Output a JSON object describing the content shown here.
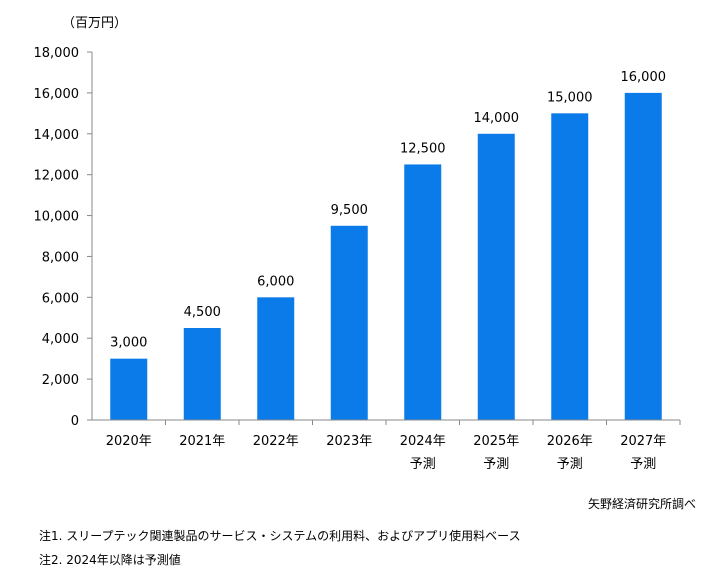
{
  "chart_data": {
    "type": "bar",
    "unit_label": "（百万円）",
    "categories": [
      "2020年",
      "2021年",
      "2022年",
      "2023年",
      "2024年",
      "2025年",
      "2026年",
      "2027年"
    ],
    "category_sublabels": [
      "",
      "",
      "",
      "",
      "予測",
      "予測",
      "予測",
      "予測"
    ],
    "values": [
      3000,
      4500,
      6000,
      9500,
      12500,
      14000,
      15000,
      16000
    ],
    "data_labels": [
      "3,000",
      "4,500",
      "6,000",
      "9,500",
      "12,500",
      "14,000",
      "15,000",
      "16,000"
    ],
    "y_ticks": [
      "0",
      "2,000",
      "4,000",
      "6,000",
      "8,000",
      "10,000",
      "12,000",
      "14,000",
      "16,000",
      "18,000"
    ],
    "ylim": [
      0,
      18000
    ],
    "grid": false,
    "bar_color": "#0a7be8"
  },
  "source": "矢野経済研究所調べ",
  "notes": [
    "注1. スリープテック関連製品のサービス・システムの利用料、およびアプリ使用料ベース",
    "注2. 2024年以降は予測値"
  ]
}
